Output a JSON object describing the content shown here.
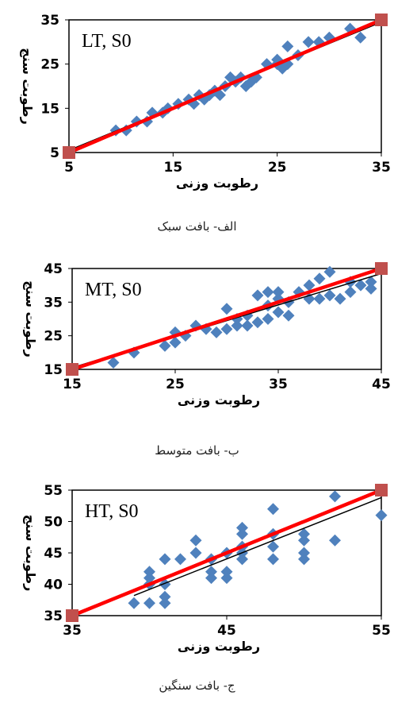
{
  "chart_data": [
    {
      "type": "scatter",
      "tag": "LT, S0",
      "xlabel": "رطوبت وزنی",
      "ylabel": "رطوبت سنج",
      "xlim": [
        5,
        35
      ],
      "ylim": [
        5,
        35
      ],
      "xticks": [
        "5",
        "15",
        "25",
        "35"
      ],
      "yticks": [
        "5",
        "15",
        "25",
        "35"
      ],
      "caption": "الف- بافت سبک",
      "points": [
        [
          9.5,
          10
        ],
        [
          10.5,
          10
        ],
        [
          11.5,
          12
        ],
        [
          12.5,
          12
        ],
        [
          13,
          14
        ],
        [
          14,
          14
        ],
        [
          14.5,
          15
        ],
        [
          15.5,
          16
        ],
        [
          16.5,
          17
        ],
        [
          17,
          16
        ],
        [
          17.5,
          18
        ],
        [
          18,
          17
        ],
        [
          18.5,
          18
        ],
        [
          19,
          19
        ],
        [
          19.5,
          18
        ],
        [
          20,
          20
        ],
        [
          20.5,
          22
        ],
        [
          21,
          21
        ],
        [
          21.5,
          22
        ],
        [
          22,
          20
        ],
        [
          22.5,
          21
        ],
        [
          23,
          22
        ],
        [
          24,
          25
        ],
        [
          25,
          26
        ],
        [
          25,
          25
        ],
        [
          25.5,
          24
        ],
        [
          26,
          25
        ],
        [
          26,
          29
        ],
        [
          27,
          27
        ],
        [
          28,
          30
        ],
        [
          29,
          30
        ],
        [
          30,
          31
        ],
        [
          32,
          33
        ],
        [
          33,
          31
        ]
      ],
      "fit_line": [
        [
          5,
          5.5
        ],
        [
          35,
          34.5
        ]
      ],
      "one_to_one": [
        [
          5,
          5
        ],
        [
          35,
          35
        ]
      ],
      "colors": {
        "points": "#4f81bd",
        "fit": "#000000",
        "one_to_one": "#ff0000",
        "endpoints": "#c0504d"
      }
    },
    {
      "type": "scatter",
      "tag": "MT, S0",
      "xlabel": "رطوبت وزنی",
      "ylabel": "رطوبت سنج",
      "xlim": [
        15,
        45
      ],
      "ylim": [
        15,
        45
      ],
      "xticks": [
        "15",
        "25",
        "35",
        "45"
      ],
      "yticks": [
        "15",
        "25",
        "35",
        "45"
      ],
      "caption": "ب- بافت متوسط",
      "points": [
        [
          19,
          17
        ],
        [
          21,
          20
        ],
        [
          24,
          22
        ],
        [
          25,
          23
        ],
        [
          25,
          26
        ],
        [
          26,
          25
        ],
        [
          27,
          28
        ],
        [
          28,
          27
        ],
        [
          29,
          26
        ],
        [
          30,
          27
        ],
        [
          30,
          33
        ],
        [
          31,
          28
        ],
        [
          31,
          30
        ],
        [
          32,
          28
        ],
        [
          32,
          31
        ],
        [
          33,
          29
        ],
        [
          33,
          37
        ],
        [
          34,
          30
        ],
        [
          34,
          34
        ],
        [
          34,
          38
        ],
        [
          35,
          32
        ],
        [
          35,
          36
        ],
        [
          35,
          38
        ],
        [
          36,
          31
        ],
        [
          36,
          35
        ],
        [
          37,
          38
        ],
        [
          38,
          36
        ],
        [
          38,
          40
        ],
        [
          39,
          36
        ],
        [
          39,
          42
        ],
        [
          40,
          37
        ],
        [
          40,
          44
        ],
        [
          41,
          36
        ],
        [
          42,
          38
        ],
        [
          42,
          41
        ],
        [
          43,
          40
        ],
        [
          44,
          39
        ],
        [
          44,
          41
        ]
      ],
      "fit_line": [
        [
          15,
          15.5
        ],
        [
          45,
          43.5
        ]
      ],
      "one_to_one": [
        [
          15,
          15
        ],
        [
          45,
          45
        ]
      ],
      "colors": {
        "points": "#4f81bd",
        "fit": "#000000",
        "one_to_one": "#ff0000",
        "endpoints": "#c0504d"
      }
    },
    {
      "type": "scatter",
      "tag": "HT, S0",
      "xlabel": "رطوبت وزنی",
      "ylabel": "رطوبت سنج",
      "xlim": [
        35,
        55
      ],
      "ylim": [
        35,
        55
      ],
      "xticks": [
        "35",
        "45",
        "55"
      ],
      "yticks": [
        "35",
        "40",
        "45",
        "50",
        "55"
      ],
      "caption": "ج- بافت سنگین",
      "points": [
        [
          39,
          37
        ],
        [
          40,
          37
        ],
        [
          40,
          40
        ],
        [
          40,
          41
        ],
        [
          40,
          42
        ],
        [
          41,
          37
        ],
        [
          41,
          38
        ],
        [
          41,
          40
        ],
        [
          41,
          44
        ],
        [
          42,
          44
        ],
        [
          43,
          45
        ],
        [
          43,
          47
        ],
        [
          44,
          41
        ],
        [
          44,
          42
        ],
        [
          44,
          44
        ],
        [
          45,
          41
        ],
        [
          45,
          42
        ],
        [
          45,
          45
        ],
        [
          46,
          44
        ],
        [
          46,
          45
        ],
        [
          46,
          46
        ],
        [
          46,
          48
        ],
        [
          46,
          49
        ],
        [
          48,
          44
        ],
        [
          48,
          46
        ],
        [
          48,
          48
        ],
        [
          48,
          52
        ],
        [
          50,
          44
        ],
        [
          50,
          45
        ],
        [
          50,
          47
        ],
        [
          50,
          48
        ],
        [
          52,
          47
        ],
        [
          52,
          54
        ],
        [
          55,
          51
        ]
      ],
      "fit_line": [
        [
          39,
          38.2
        ],
        [
          55,
          53.8
        ]
      ],
      "one_to_one": [
        [
          35,
          35
        ],
        [
          55,
          55
        ]
      ],
      "colors": {
        "points": "#4f81bd",
        "fit": "#000000",
        "one_to_one": "#ff0000",
        "endpoints": "#c0504d"
      }
    }
  ]
}
